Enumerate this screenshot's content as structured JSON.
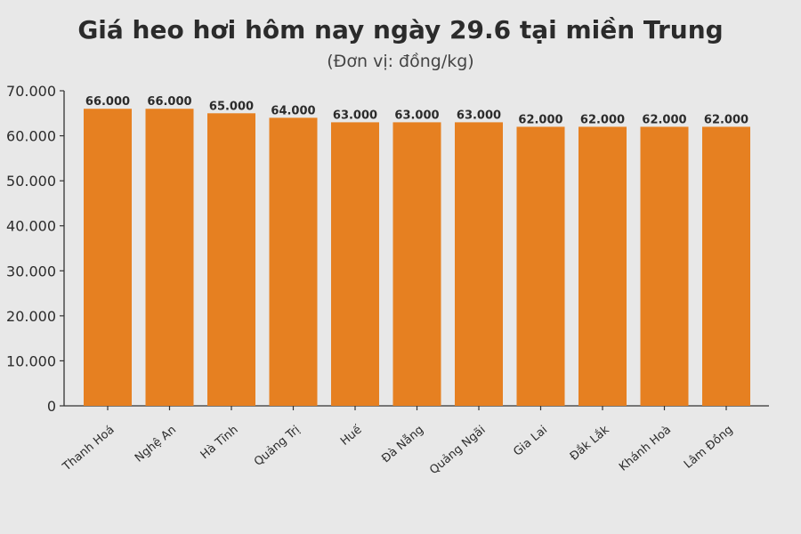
{
  "chart_data": {
    "type": "bar",
    "title": "Giá heo hơi hôm nay ngày 29.6 tại miền Trung",
    "subtitle": "(Đơn vị: đồng/kg)",
    "xlabel": "",
    "ylabel": "",
    "categories": [
      "Thanh Hoá",
      "Nghệ An",
      "Hà Tĩnh",
      "Quảng Trị",
      "Huế",
      "Đà Nẵng",
      "Quảng Ngãi",
      "Gia Lai",
      "Đắk Lắk",
      "Khánh Hoà",
      "Lâm Đồng"
    ],
    "values": [
      66000,
      66000,
      65000,
      64000,
      63000,
      63000,
      63000,
      62000,
      62000,
      62000,
      62000
    ],
    "value_labels": [
      "66.000",
      "66.000",
      "65.000",
      "64.000",
      "63.000",
      "63.000",
      "63.000",
      "62.000",
      "62.000",
      "62.000",
      "62.000"
    ],
    "ylim": [
      0,
      70000
    ],
    "yticks": [
      0,
      10000,
      20000,
      30000,
      40000,
      50000,
      60000,
      70000
    ],
    "ytick_labels": [
      "0",
      "10.000",
      "20.000",
      "30.000",
      "40.000",
      "50.000",
      "60.000",
      "70.000"
    ],
    "grid": false,
    "legend": "none",
    "colors": {
      "bar": "#e68021",
      "background": "#e8e8e8",
      "text": "#2b2b2b",
      "axis": "#333333"
    }
  }
}
